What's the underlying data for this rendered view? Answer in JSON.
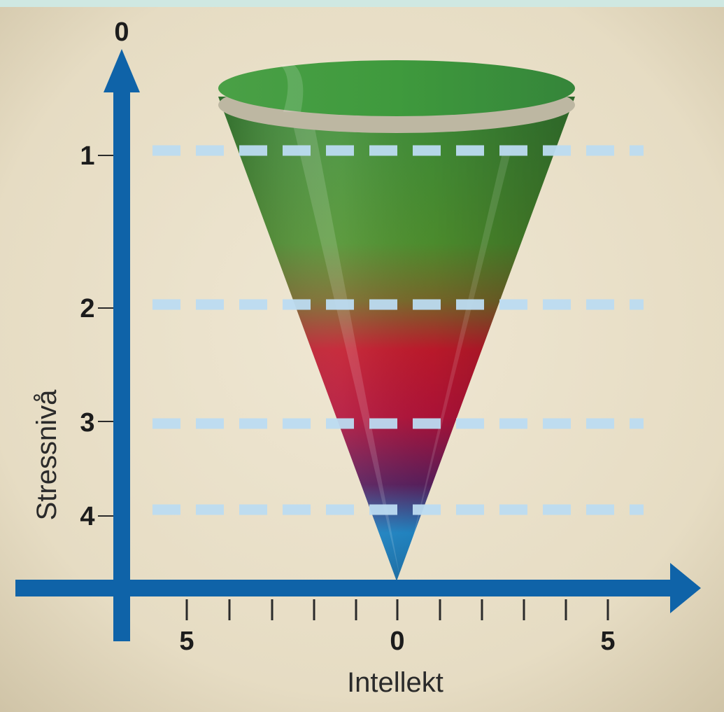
{
  "diagram": {
    "y_axis": {
      "label": "Stressnivå",
      "ticks": [
        "0",
        "1",
        "2",
        "3",
        "4"
      ]
    },
    "x_axis": {
      "label": "Intellekt",
      "tick_labels": [
        "5",
        "0",
        "5"
      ]
    },
    "cone": {
      "gradient_colors": [
        "#3e8f3a",
        "#4f922f",
        "#c0142e",
        "#5a1f5e",
        "#1f86c6"
      ]
    },
    "colors": {
      "axis": "#0f63a8",
      "dashes": "#bcdcf2",
      "background": "#e9e1cc",
      "top_band": "#cfe8e2"
    }
  }
}
